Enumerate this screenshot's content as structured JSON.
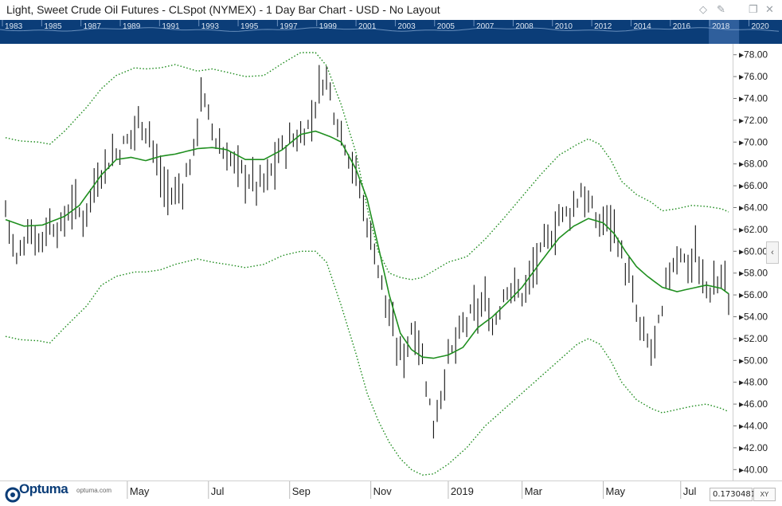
{
  "header": {
    "title": "Light, Sweet Crude Oil Futures - CLSpot (NYMEX) - 1 Day Bar Chart - USD - No Layout",
    "icons": [
      "pin-outline-icon",
      "pin-icon",
      "restore-icon",
      "close-icon"
    ]
  },
  "overview": {
    "years": [
      "1983",
      "1985",
      "1987",
      "1989",
      "1991",
      "1993",
      "1995",
      "1997",
      "1999",
      "2001",
      "2003",
      "2005",
      "2007",
      "2008",
      "2010",
      "2012",
      "2014",
      "2016",
      "2018",
      "2020"
    ],
    "highlight": "2018"
  },
  "footer": {
    "logo_text": "Optuma",
    "logo_url": "optuma.com",
    "readout": "0.1730481",
    "xy_label": "XY",
    "collapse_icon": "‹"
  },
  "colors": {
    "bars": "#111111",
    "moving_average": "#1f8f1f",
    "bands": "#1a8a1a",
    "overview_bg": "#0b3d78"
  },
  "chart_data": {
    "type": "bar",
    "ylim": [
      39,
      79
    ],
    "yticks": [
      "40.00",
      "42.00",
      "44.00",
      "46.00",
      "48.00",
      "50.00",
      "52.00",
      "54.00",
      "56.00",
      "58.00",
      "60.00",
      "62.00",
      "64.00",
      "66.00",
      "68.00",
      "70.00",
      "72.00",
      "74.00",
      "76.00",
      "78.00"
    ],
    "x_labels": [
      {
        "label": "May",
        "bar": 33
      },
      {
        "label": "Jul",
        "bar": 55
      },
      {
        "label": "Sep",
        "bar": 77
      },
      {
        "label": "Nov",
        "bar": 99
      },
      {
        "label": "2019",
        "bar": 120
      },
      {
        "label": "Mar",
        "bar": 140
      },
      {
        "label": "May",
        "bar": 162
      },
      {
        "label": "Jul",
        "bar": 183
      }
    ],
    "price_anchors": [
      [
        0,
        64.0
      ],
      [
        3,
        59.0
      ],
      [
        6,
        62.0
      ],
      [
        9,
        61.0
      ],
      [
        12,
        62.5
      ],
      [
        15,
        62.0
      ],
      [
        18,
        64.5
      ],
      [
        21,
        63.0
      ],
      [
        24,
        66.0
      ],
      [
        27,
        68.0
      ],
      [
        30,
        69.0
      ],
      [
        33,
        70.0
      ],
      [
        36,
        72.0
      ],
      [
        39,
        71.0
      ],
      [
        42,
        66.5
      ],
      [
        45,
        65.0
      ],
      [
        48,
        66.0
      ],
      [
        51,
        69.0
      ],
      [
        53,
        74.5
      ],
      [
        56,
        71.0
      ],
      [
        59,
        69.0
      ],
      [
        62,
        68.0
      ],
      [
        65,
        67.0
      ],
      [
        68,
        66.0
      ],
      [
        71,
        66.5
      ],
      [
        74,
        69.0
      ],
      [
        77,
        70.0
      ],
      [
        80,
        70.5
      ],
      [
        83,
        72.0
      ],
      [
        85,
        75.0
      ],
      [
        87,
        76.0
      ],
      [
        89,
        73.0
      ],
      [
        92,
        70.0
      ],
      [
        95,
        67.0
      ],
      [
        97,
        64.0
      ],
      [
        100,
        60.0
      ],
      [
        102,
        57.0
      ],
      [
        104,
        54.0
      ],
      [
        106,
        51.0
      ],
      [
        108,
        50.5
      ],
      [
        110,
        53.0
      ],
      [
        112,
        52.0
      ],
      [
        114,
        48.0
      ],
      [
        115,
        46.0
      ],
      [
        116,
        44.0
      ],
      [
        117,
        45.5
      ],
      [
        118,
        47.0
      ],
      [
        120,
        50.0
      ],
      [
        122,
        51.5
      ],
      [
        124,
        53.0
      ],
      [
        126,
        54.0
      ],
      [
        128,
        54.5
      ],
      [
        130,
        55.5
      ],
      [
        132,
        53.0
      ],
      [
        134,
        55.0
      ],
      [
        136,
        57.0
      ],
      [
        138,
        56.5
      ],
      [
        140,
        56.0
      ],
      [
        142,
        57.5
      ],
      [
        144,
        59.0
      ],
      [
        146,
        60.5
      ],
      [
        148,
        61.5
      ],
      [
        150,
        63.0
      ],
      [
        152,
        63.5
      ],
      [
        154,
        64.0
      ],
      [
        156,
        65.5
      ],
      [
        157,
        65.0
      ],
      [
        159,
        63.5
      ],
      [
        161,
        62.5
      ],
      [
        163,
        63.0
      ],
      [
        165,
        62.5
      ],
      [
        167,
        59.5
      ],
      [
        169,
        57.5
      ],
      [
        171,
        54.0
      ],
      [
        173,
        52.0
      ],
      [
        175,
        51.0
      ],
      [
        177,
        53.0
      ],
      [
        178,
        54.0
      ],
      [
        179,
        57.0
      ],
      [
        181,
        59.0
      ],
      [
        183,
        60.0
      ],
      [
        185,
        58.5
      ],
      [
        187,
        60.0
      ],
      [
        189,
        57.0
      ],
      [
        191,
        56.5
      ],
      [
        193,
        57.0
      ],
      [
        195,
        58.0
      ],
      [
        196,
        55.0
      ]
    ],
    "sma_anchors": [
      [
        0,
        62.9
      ],
      [
        5,
        62.3
      ],
      [
        10,
        62.4
      ],
      [
        16,
        63.2
      ],
      [
        20,
        64.2
      ],
      [
        26,
        67.0
      ],
      [
        30,
        68.4
      ],
      [
        34,
        68.6
      ],
      [
        38,
        68.3
      ],
      [
        42,
        68.7
      ],
      [
        46,
        68.9
      ],
      [
        52,
        69.4
      ],
      [
        56,
        69.5
      ],
      [
        60,
        69.3
      ],
      [
        65,
        68.4
      ],
      [
        70,
        68.4
      ],
      [
        75,
        69.3
      ],
      [
        80,
        70.7
      ],
      [
        84,
        71.0
      ],
      [
        88,
        70.5
      ],
      [
        91,
        70.0
      ],
      [
        95,
        67.5
      ],
      [
        98,
        64.8
      ],
      [
        101,
        60.5
      ],
      [
        104,
        56.0
      ],
      [
        107,
        52.5
      ],
      [
        110,
        51.0
      ],
      [
        113,
        50.3
      ],
      [
        116,
        50.2
      ],
      [
        120,
        50.5
      ],
      [
        124,
        51.2
      ],
      [
        128,
        53.0
      ],
      [
        132,
        54.0
      ],
      [
        136,
        55.3
      ],
      [
        140,
        56.7
      ],
      [
        145,
        59.0
      ],
      [
        150,
        61.2
      ],
      [
        154,
        62.3
      ],
      [
        158,
        63.0
      ],
      [
        162,
        62.6
      ],
      [
        165,
        61.6
      ],
      [
        168,
        60.0
      ],
      [
        171,
        58.6
      ],
      [
        174,
        57.7
      ],
      [
        178,
        56.7
      ],
      [
        182,
        56.3
      ],
      [
        186,
        56.6
      ],
      [
        190,
        56.9
      ],
      [
        194,
        56.6
      ],
      [
        196,
        56.1
      ]
    ],
    "upper_band_anchors": [
      [
        0,
        70.4
      ],
      [
        4,
        70.1
      ],
      [
        9,
        70.0
      ],
      [
        12,
        69.8
      ],
      [
        16,
        71.0
      ],
      [
        22,
        73.2
      ],
      [
        26,
        74.9
      ],
      [
        30,
        76.1
      ],
      [
        35,
        76.8
      ],
      [
        38,
        76.7
      ],
      [
        42,
        76.8
      ],
      [
        46,
        77.1
      ],
      [
        52,
        76.5
      ],
      [
        56,
        76.7
      ],
      [
        60,
        76.4
      ],
      [
        65,
        76.0
      ],
      [
        70,
        76.1
      ],
      [
        75,
        77.2
      ],
      [
        80,
        78.2
      ],
      [
        84,
        78.2
      ],
      [
        87,
        77.0
      ],
      [
        91,
        73.4
      ],
      [
        95,
        69.0
      ],
      [
        98,
        64.0
      ],
      [
        101,
        60.0
      ],
      [
        104,
        58.0
      ],
      [
        107,
        57.6
      ],
      [
        110,
        57.4
      ],
      [
        113,
        57.6
      ],
      [
        116,
        58.2
      ],
      [
        120,
        59.0
      ],
      [
        125,
        59.5
      ],
      [
        130,
        61.1
      ],
      [
        135,
        63.0
      ],
      [
        140,
        65.0
      ],
      [
        145,
        67.0
      ],
      [
        150,
        68.8
      ],
      [
        155,
        69.8
      ],
      [
        158,
        70.3
      ],
      [
        161,
        69.8
      ],
      [
        164,
        68.4
      ],
      [
        167,
        66.4
      ],
      [
        171,
        65.2
      ],
      [
        175,
        64.5
      ],
      [
        178,
        63.7
      ],
      [
        182,
        63.9
      ],
      [
        186,
        64.2
      ],
      [
        190,
        64.1
      ],
      [
        194,
        63.9
      ],
      [
        196,
        63.6
      ]
    ],
    "lower_band_anchors": [
      [
        0,
        52.2
      ],
      [
        4,
        51.9
      ],
      [
        9,
        51.8
      ],
      [
        12,
        51.6
      ],
      [
        16,
        53.0
      ],
      [
        22,
        55.0
      ],
      [
        26,
        56.9
      ],
      [
        30,
        57.7
      ],
      [
        35,
        58.1
      ],
      [
        38,
        58.1
      ],
      [
        42,
        58.3
      ],
      [
        46,
        58.8
      ],
      [
        52,
        59.3
      ],
      [
        56,
        59.0
      ],
      [
        60,
        58.8
      ],
      [
        65,
        58.5
      ],
      [
        70,
        58.8
      ],
      [
        75,
        59.6
      ],
      [
        80,
        60.0
      ],
      [
        84,
        60.0
      ],
      [
        87,
        59.0
      ],
      [
        91,
        55.0
      ],
      [
        95,
        50.6
      ],
      [
        98,
        47.0
      ],
      [
        101,
        44.5
      ],
      [
        104,
        42.5
      ],
      [
        107,
        41.0
      ],
      [
        110,
        40.0
      ],
      [
        113,
        39.5
      ],
      [
        116,
        39.6
      ],
      [
        120,
        40.5
      ],
      [
        125,
        42.0
      ],
      [
        130,
        44.0
      ],
      [
        135,
        45.5
      ],
      [
        140,
        47.0
      ],
      [
        145,
        48.5
      ],
      [
        150,
        50.0
      ],
      [
        155,
        51.5
      ],
      [
        158,
        52.0
      ],
      [
        161,
        51.5
      ],
      [
        164,
        50.0
      ],
      [
        167,
        48.0
      ],
      [
        171,
        46.4
      ],
      [
        175,
        45.6
      ],
      [
        178,
        45.2
      ],
      [
        182,
        45.5
      ],
      [
        186,
        45.8
      ],
      [
        190,
        46.0
      ],
      [
        194,
        45.6
      ],
      [
        196,
        45.3
      ]
    ]
  }
}
